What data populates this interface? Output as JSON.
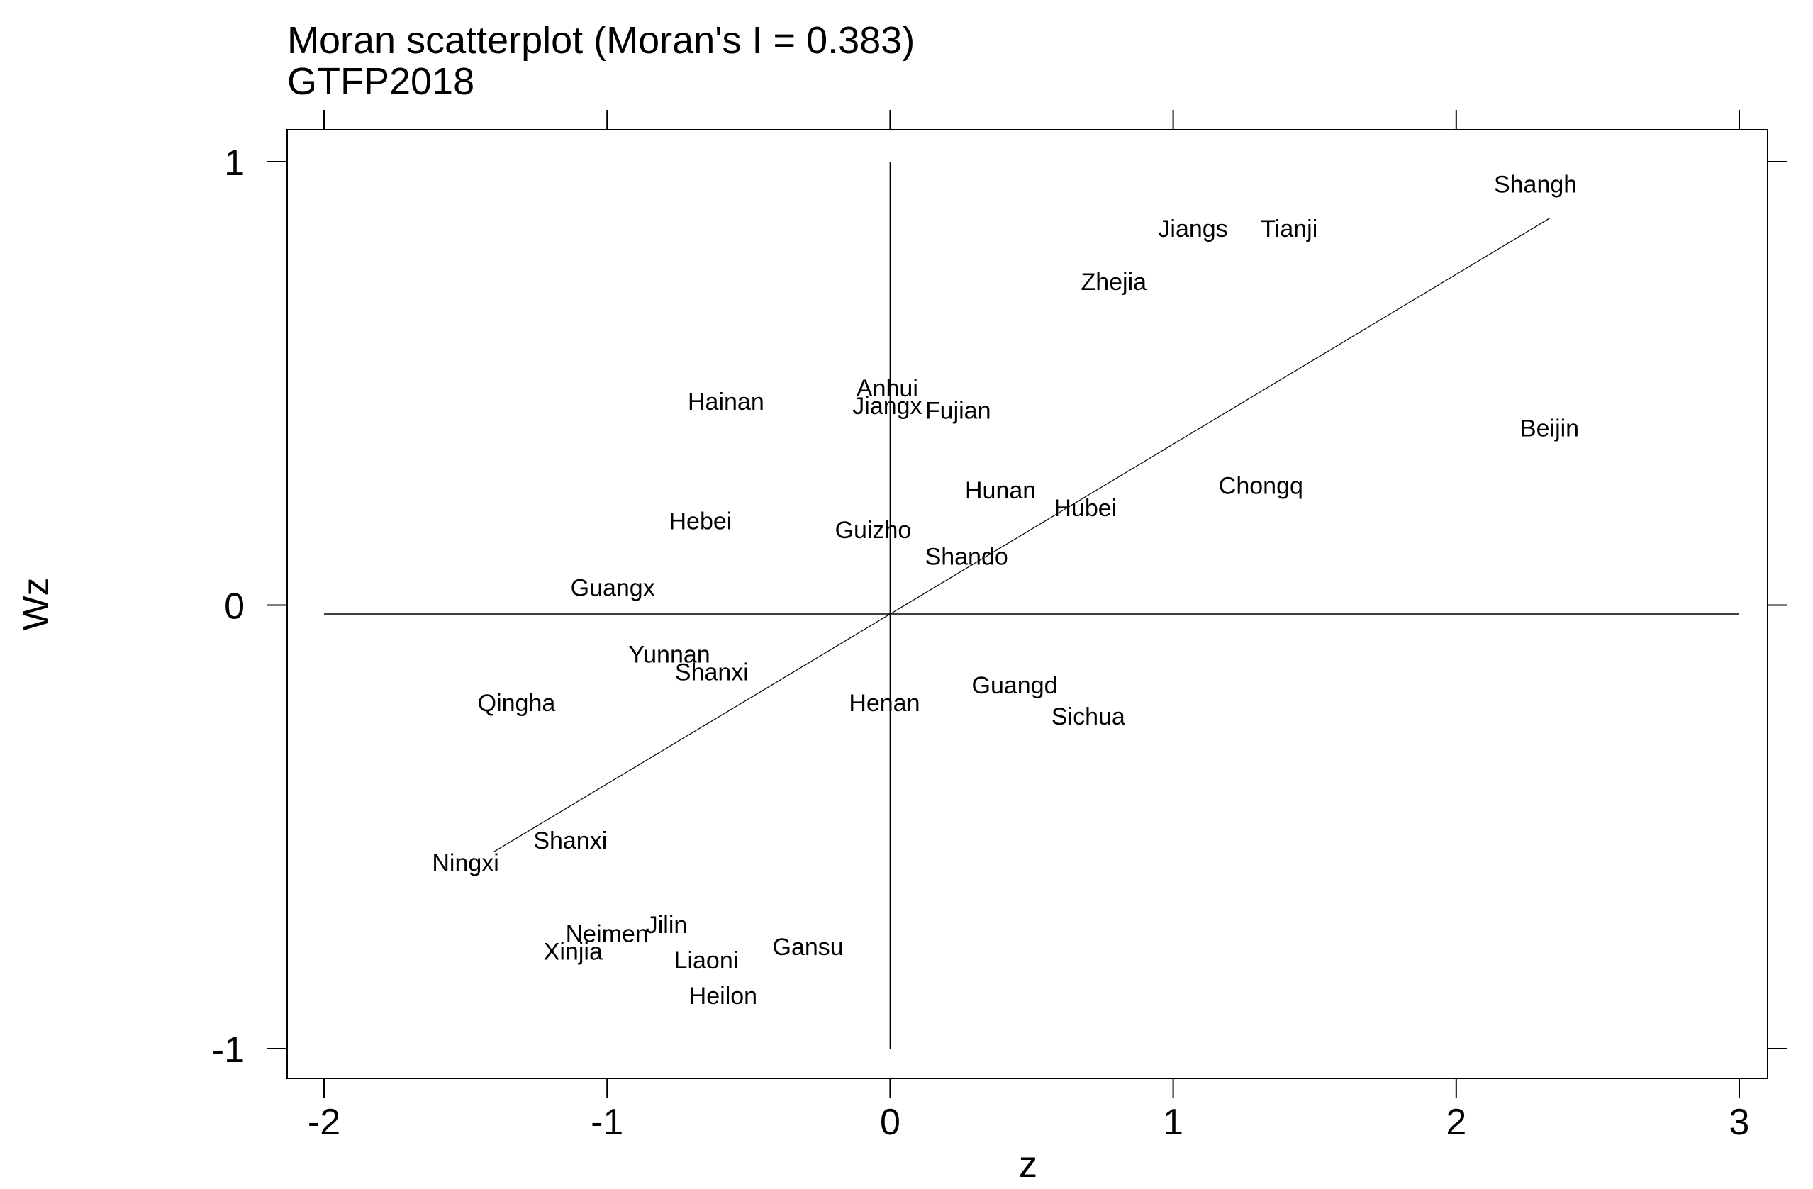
{
  "chart_data": {
    "type": "scatter",
    "title": "Moran scatterplot (Moran's I = 0.383)",
    "subtitle": "GTFP2018",
    "xlabel": "z",
    "ylabel": "Wz",
    "xlim": [
      -2,
      3
    ],
    "ylim": [
      -1.1,
      1.1
    ],
    "xticks": [
      -2,
      -1,
      0,
      1,
      2,
      3
    ],
    "yticks": [
      -1,
      0,
      1
    ],
    "xtick_labels": [
      "-2",
      "-1",
      "0",
      "1",
      "2",
      "3"
    ],
    "ytick_labels": [
      "-1",
      "0",
      "1"
    ],
    "grid": false,
    "reference_lines": {
      "x": 0,
      "y": -0.02
    },
    "fit_line": {
      "slope": 0.383,
      "intercept": -0.02,
      "x_range": [
        -1.4,
        2.33
      ]
    },
    "points": [
      {
        "label": "Shangh",
        "x": 2.28,
        "y": 0.95
      },
      {
        "label": "Jiangs",
        "x": 1.07,
        "y": 0.85
      },
      {
        "label": "Tianji",
        "x": 1.41,
        "y": 0.85
      },
      {
        "label": "Zhejia",
        "x": 0.79,
        "y": 0.73
      },
      {
        "label": "Anhui",
        "x": -0.01,
        "y": 0.49
      },
      {
        "label": "Hainan",
        "x": -0.58,
        "y": 0.46
      },
      {
        "label": "Jiangx",
        "x": -0.01,
        "y": 0.45
      },
      {
        "label": "Fujian",
        "x": 0.24,
        "y": 0.44
      },
      {
        "label": "Beijin",
        "x": 2.33,
        "y": 0.4
      },
      {
        "label": "Chongq",
        "x": 1.31,
        "y": 0.27
      },
      {
        "label": "Hunan",
        "x": 0.39,
        "y": 0.26
      },
      {
        "label": "Hubei",
        "x": 0.69,
        "y": 0.22
      },
      {
        "label": "Hebei",
        "x": -0.67,
        "y": 0.19
      },
      {
        "label": "Guizho",
        "x": -0.06,
        "y": 0.17
      },
      {
        "label": "Shando",
        "x": 0.27,
        "y": 0.11
      },
      {
        "label": "Guangx",
        "x": -0.98,
        "y": 0.04
      },
      {
        "label": "Yunnan",
        "x": -0.78,
        "y": -0.11
      },
      {
        "label": "Shanxi",
        "x": -0.63,
        "y": -0.15
      },
      {
        "label": "Guangd",
        "x": 0.44,
        "y": -0.18
      },
      {
        "label": "Henan",
        "x": -0.02,
        "y": -0.22
      },
      {
        "label": "Qingha",
        "x": -1.32,
        "y": -0.22
      },
      {
        "label": "Sichua",
        "x": 0.7,
        "y": -0.25
      },
      {
        "label": "Shanxi",
        "x": -1.13,
        "y": -0.53
      },
      {
        "label": "Ningxi",
        "x": -1.5,
        "y": -0.58
      },
      {
        "label": "Jilin",
        "x": -0.79,
        "y": -0.72
      },
      {
        "label": "Neimen",
        "x": -1.0,
        "y": -0.74
      },
      {
        "label": "Xinjia",
        "x": -1.12,
        "y": -0.78
      },
      {
        "label": "Gansu",
        "x": -0.29,
        "y": -0.77
      },
      {
        "label": "Liaoni",
        "x": -0.65,
        "y": -0.8
      },
      {
        "label": "Heilon",
        "x": -0.59,
        "y": -0.88
      }
    ]
  }
}
